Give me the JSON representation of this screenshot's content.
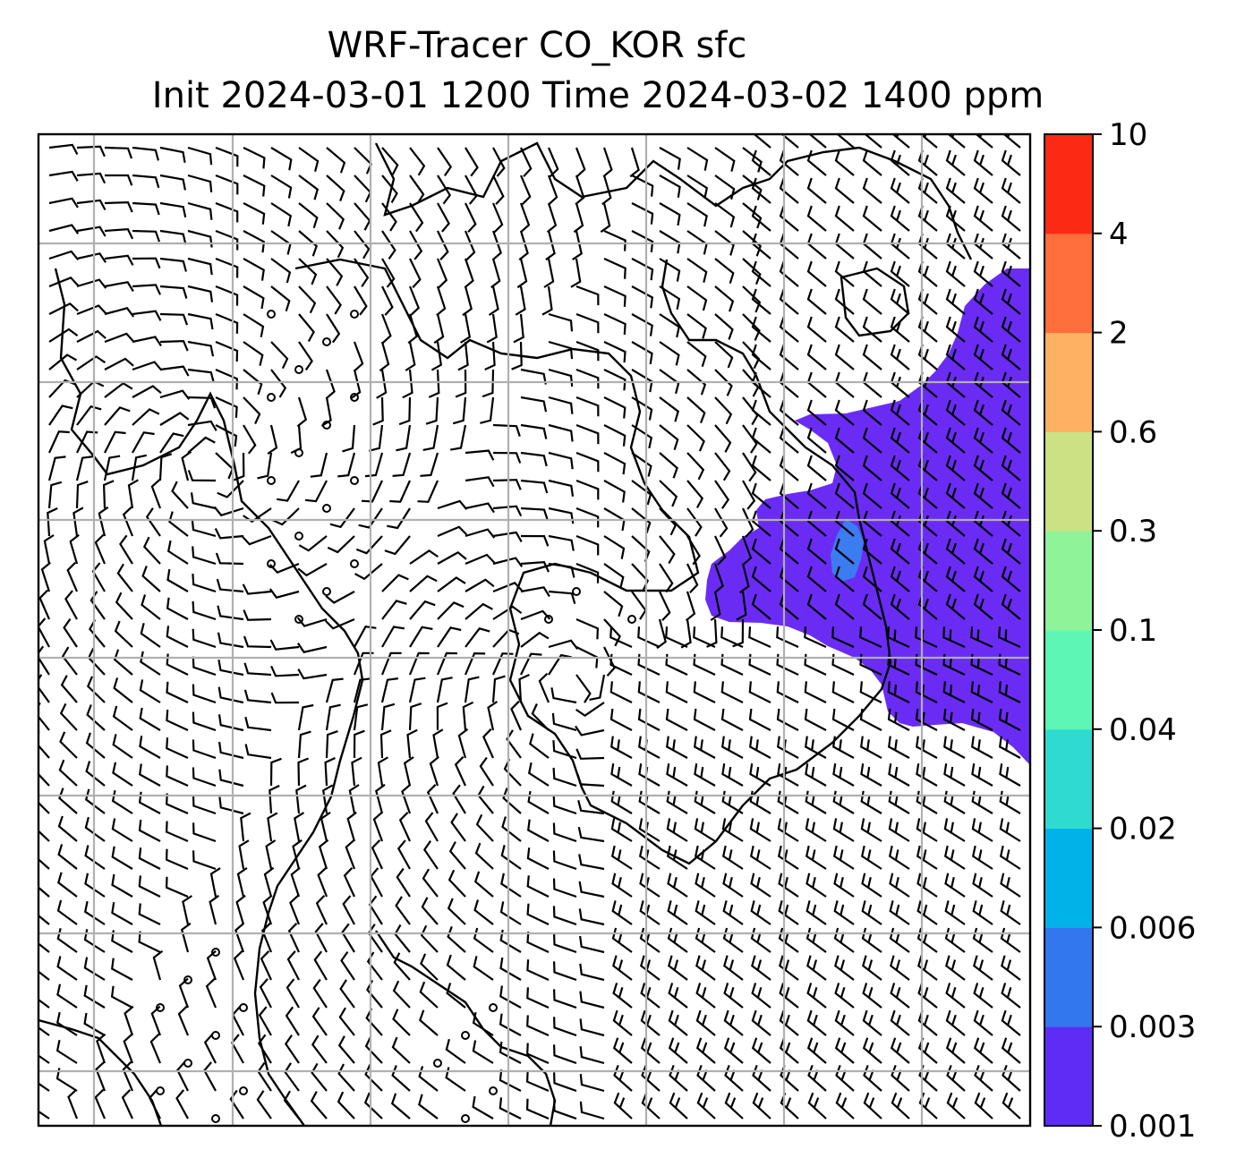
{
  "title": {
    "line1": "WRF-Tracer CO_KOR sfc",
    "line2": "Init 2024-03-01 1200 Time 2024-03-02 1400 ppm"
  },
  "map": {
    "plume_color": "#6a2cf5",
    "plume_core_color": "#3b7cf0",
    "gridline_color": "#b0b0b0",
    "coastline_color": "#000000",
    "barb_color": "#000000"
  },
  "colorbar": {
    "levels": [
      "0.001",
      "0.003",
      "0.006",
      "0.02",
      "0.04",
      "0.1",
      "0.3",
      "0.6",
      "2",
      "4",
      "10"
    ],
    "colors": [
      "#5f2cf6",
      "#3277ee",
      "#00b2e8",
      "#2ddbd1",
      "#5df6b5",
      "#8ff399",
      "#cbe184",
      "#feb063",
      "#ff6e3b",
      "#fc2a14"
    ]
  }
}
